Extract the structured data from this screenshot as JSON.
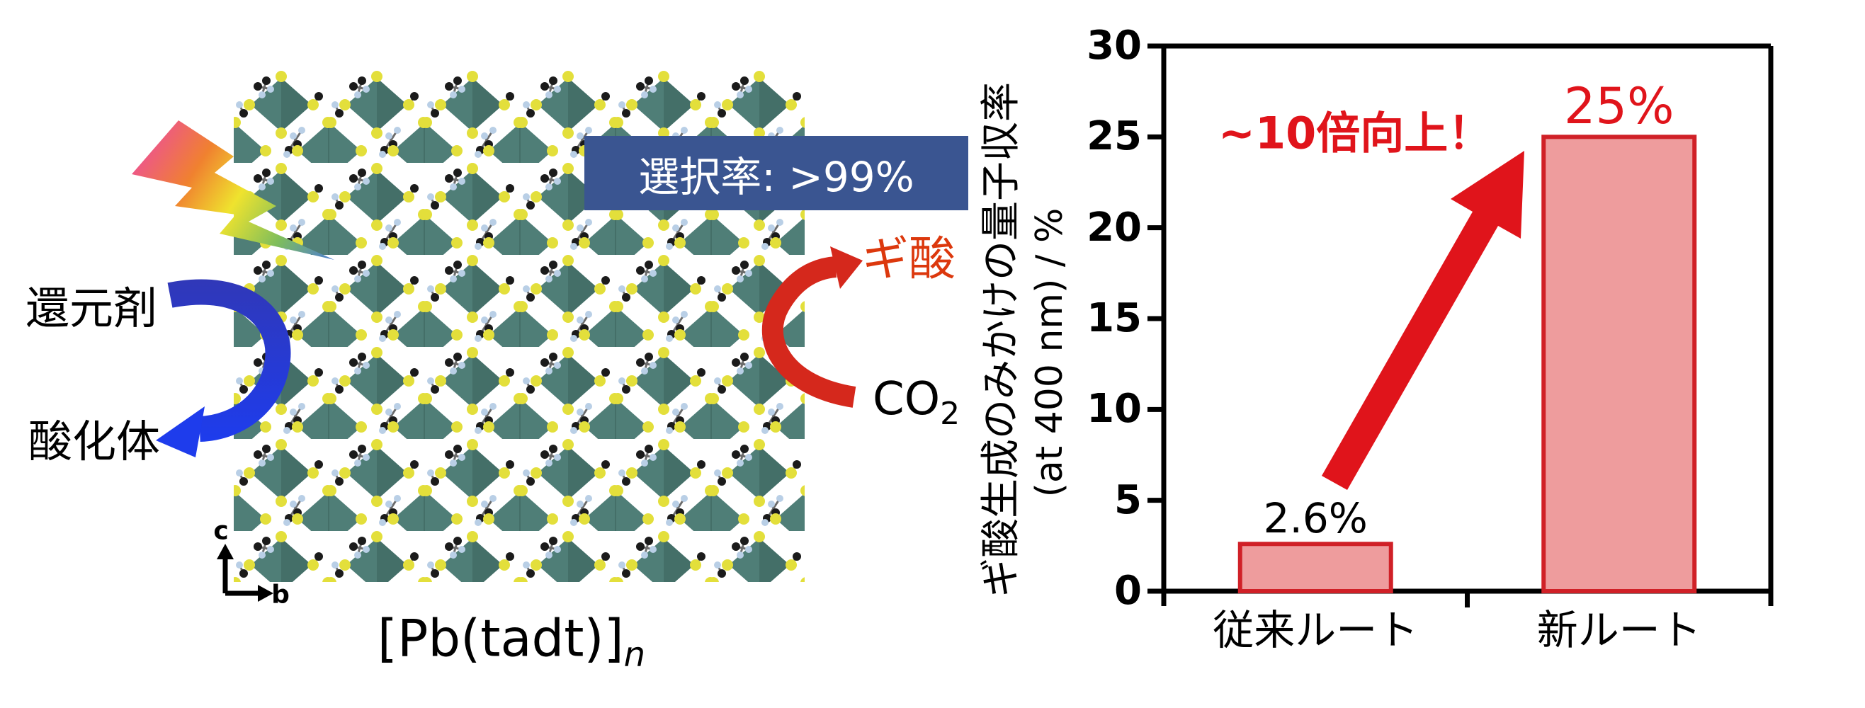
{
  "colors": {
    "badge-blue": "#3A5591",
    "accent-red": "#E0141B",
    "formic-red": "#DC380D",
    "arrow-red": "#D5281C",
    "arrow-blue-dark": "#3038B8",
    "arrow-blue-bright": "#1E3CEC",
    "bar-fill": "#EE9C9D",
    "bar-border": "#D02027",
    "axis-black": "#000000",
    "polyhedron-teal": "#4F7E77",
    "atom-yellow": "#E3DF3B",
    "atom-lightblue": "#B9CFE6",
    "bolt-pink": "#ED4E9B",
    "bolt-orange": "#F0812F",
    "bolt-yellow": "#EFE32E",
    "bolt-green": "#7FBE5B",
    "bolt-blue": "#4A7BD4"
  },
  "scheme": {
    "light_bolt_icon": "rainbow-lightning-bolt",
    "reductant_label": "還元剤",
    "oxidant_label": "酸化体",
    "selectivity_badge": "選択率: >99%",
    "formic_acid_label": "ギ酸",
    "co2_base": "CO",
    "co2_subscript": "2",
    "compound_formula": "[Pb(tadt)]",
    "compound_subscript": "n",
    "axis_c_label": "c",
    "axis_b_label": "b"
  },
  "chart_data": {
    "type": "bar",
    "categories": [
      "従来ルート",
      "新ルート"
    ],
    "values": [
      2.6,
      25
    ],
    "bar_labels": [
      {
        "text": "2.6%",
        "color": "#000000"
      },
      {
        "text": "25%",
        "color": "#E0141B"
      }
    ],
    "annotation": "~10倍向上！",
    "ylabel_line1": "ギ酸生成のみかけの量子収率",
    "ylabel_line2": "(at 400 nm) / %",
    "yticks": [
      0,
      5,
      10,
      15,
      20,
      25,
      30
    ],
    "ylim": [
      0,
      30
    ],
    "grid": false,
    "legend": null,
    "bar_fill": "#EE9C9D",
    "bar_border": "#D02027"
  }
}
